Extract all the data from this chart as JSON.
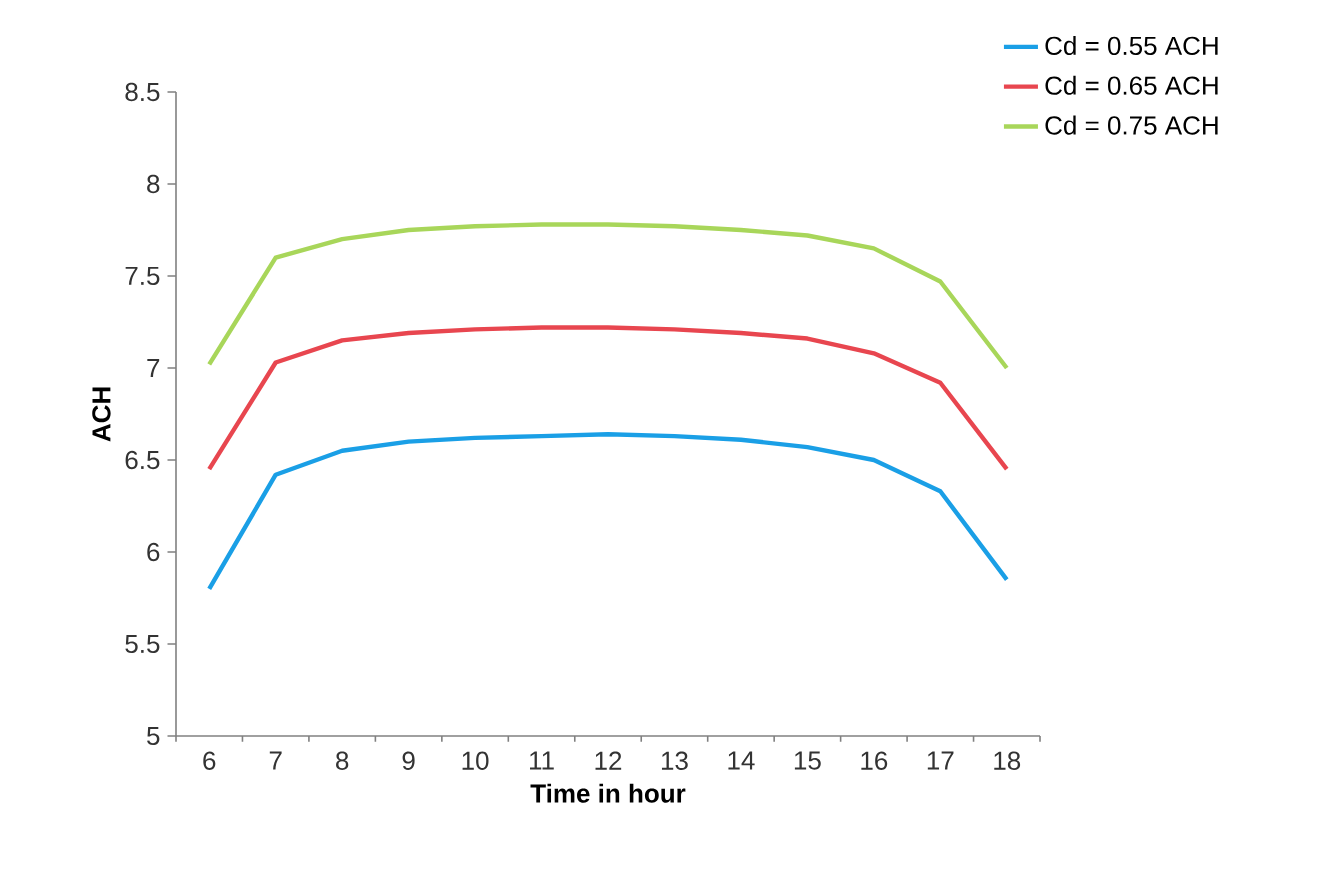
{
  "chart_data": {
    "type": "line",
    "xlabel": "Time in hour",
    "ylabel": "ACH",
    "categories": [
      "6",
      "7",
      "8",
      "9",
      "10",
      "11",
      "12",
      "13",
      "14",
      "15",
      "16",
      "17",
      "18"
    ],
    "series": [
      {
        "name": "Cd = 0.55 ACH",
        "color": "#1a9fe6",
        "values": [
          5.8,
          6.42,
          6.55,
          6.6,
          6.62,
          6.63,
          6.64,
          6.63,
          6.61,
          6.57,
          6.5,
          6.33,
          5.85
        ]
      },
      {
        "name": "Cd = 0.65 ACH",
        "color": "#e8464f",
        "values": [
          6.45,
          7.03,
          7.15,
          7.19,
          7.21,
          7.22,
          7.22,
          7.21,
          7.19,
          7.16,
          7.08,
          6.92,
          6.45
        ]
      },
      {
        "name": "Cd = 0.75 ACH",
        "color": "#a8d65a",
        "values": [
          7.02,
          7.6,
          7.7,
          7.75,
          7.77,
          7.78,
          7.78,
          7.77,
          7.75,
          7.72,
          7.65,
          7.47,
          7.0
        ]
      }
    ],
    "ylim": [
      5,
      8.5
    ],
    "yticks": [
      5,
      5.5,
      6,
      6.5,
      7,
      7.5,
      8,
      8.5
    ],
    "legend": "top right",
    "grid": false,
    "marker": "none",
    "line_style": "solid"
  }
}
